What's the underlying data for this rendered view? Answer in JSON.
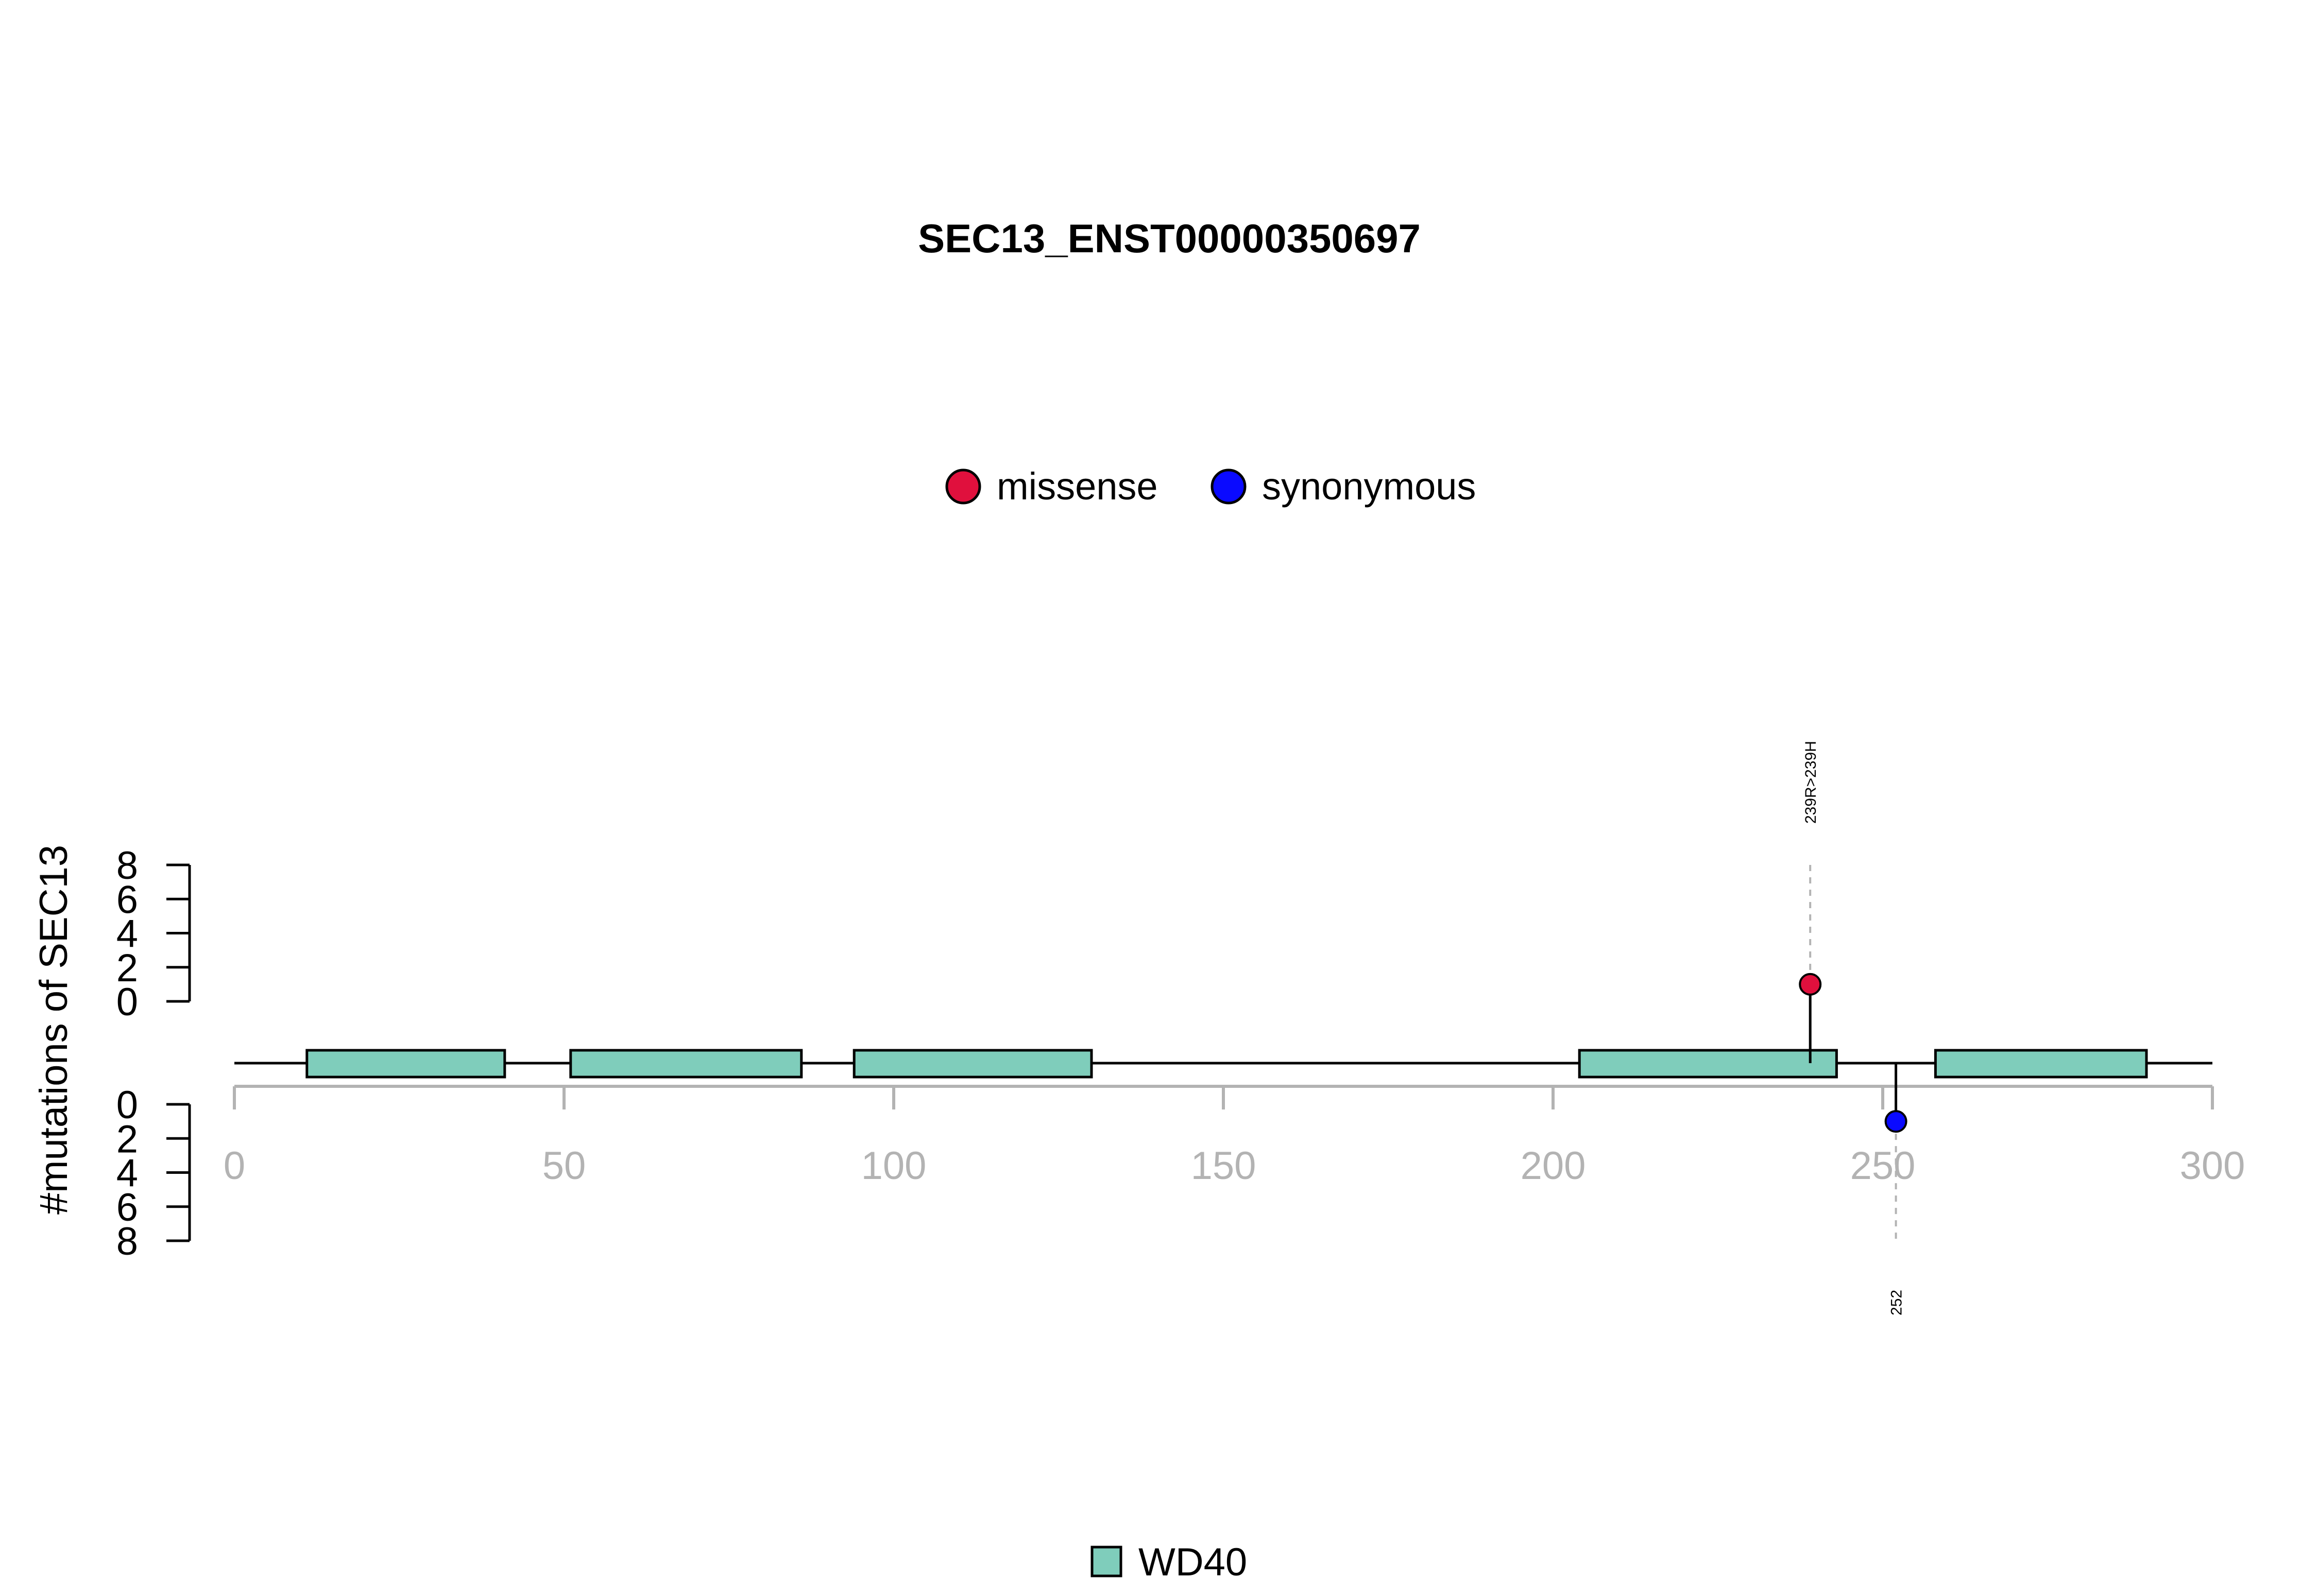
{
  "chart_data": {
    "type": "lollipop",
    "title": "SEC13_ENST00000350697",
    "ylabel": "#mutations of SEC13",
    "xlim": [
      0,
      300
    ],
    "x_ticks": [
      "0",
      "50",
      "100",
      "150",
      "200",
      "250",
      "300"
    ],
    "y_ticks": [
      "0",
      "2",
      "4",
      "6",
      "8"
    ],
    "ylim": [
      0,
      8
    ],
    "protein_length": 300,
    "legend_mutations": [
      {
        "name": "missense",
        "color": "#e0103d"
      },
      {
        "name": "synonymous",
        "color": "#0a0aff"
      }
    ],
    "domains": [
      {
        "name": "WD40",
        "start": 11,
        "end": 41
      },
      {
        "name": "WD40",
        "start": 51,
        "end": 86
      },
      {
        "name": "WD40",
        "start": 94,
        "end": 130
      },
      {
        "name": "WD40",
        "start": 204,
        "end": 243
      },
      {
        "name": "WD40",
        "start": 258,
        "end": 290
      }
    ],
    "domain_legend": [
      {
        "name": "WD40",
        "color": "#7fcdbb"
      }
    ],
    "mutations": [
      {
        "position": 239,
        "count": 1,
        "type": "missense",
        "label": "239R>239H",
        "side": "top"
      },
      {
        "position": 252,
        "count": 1,
        "type": "synonymous",
        "label": "252",
        "side": "bottom"
      }
    ]
  }
}
